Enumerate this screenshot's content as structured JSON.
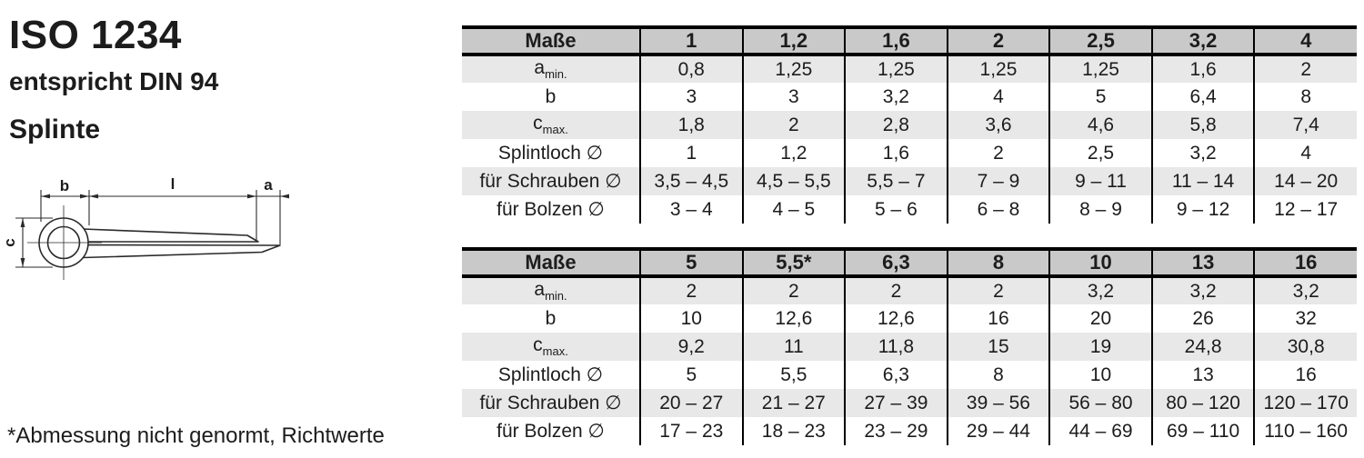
{
  "page": {
    "title": "ISO 1234",
    "subtitle": "entspricht DIN 94",
    "product": "Splinte",
    "footnote": "*Abmessung nicht genormt, Richtwerte"
  },
  "drawing": {
    "labels": {
      "b": "b",
      "l": "l",
      "a": "a",
      "c": "c"
    }
  },
  "colors": {
    "header_bg": "#c9c9c9",
    "row_alt_bg": "#e8e8e8",
    "border": "#000000",
    "text": "#1c1c1c"
  },
  "tables": [
    {
      "header": [
        "Maße",
        "1",
        "1,2",
        "1,6",
        "2",
        "2,5",
        "3,2",
        "4"
      ],
      "rows": [
        {
          "label": "a",
          "sub": "min.",
          "values": [
            "0,8",
            "1,25",
            "1,25",
            "1,25",
            "1,25",
            "1,6",
            "2"
          ]
        },
        {
          "label": "b",
          "sub": "",
          "values": [
            "3",
            "3",
            "3,2",
            "4",
            "5",
            "6,4",
            "8"
          ]
        },
        {
          "label": "c",
          "sub": "max.",
          "values": [
            "1,8",
            "2",
            "2,8",
            "3,6",
            "4,6",
            "5,8",
            "7,4"
          ]
        },
        {
          "label": "Splintloch ∅",
          "sub": "",
          "values": [
            "1",
            "1,2",
            "1,6",
            "2",
            "2,5",
            "3,2",
            "4"
          ]
        },
        {
          "label": "für Schrauben ∅",
          "sub": "",
          "values": [
            "3,5 – 4,5",
            "4,5 – 5,5",
            "5,5 – 7",
            "7 – 9",
            "9 – 11",
            "11 – 14",
            "14 – 20"
          ]
        },
        {
          "label": "für Bolzen ∅",
          "sub": "",
          "values": [
            "3 – 4",
            "4 – 5",
            "5 – 6",
            "6 – 8",
            "8 – 9",
            "9 – 12",
            "12 – 17"
          ]
        }
      ]
    },
    {
      "header": [
        "Maße",
        "5",
        "5,5*",
        "6,3",
        "8",
        "10",
        "13",
        "16"
      ],
      "rows": [
        {
          "label": "a",
          "sub": "min.",
          "values": [
            "2",
            "2",
            "2",
            "2",
            "3,2",
            "3,2",
            "3,2"
          ]
        },
        {
          "label": "b",
          "sub": "",
          "values": [
            "10",
            "12,6",
            "12,6",
            "16",
            "20",
            "26",
            "32"
          ]
        },
        {
          "label": "c",
          "sub": "max.",
          "values": [
            "9,2",
            "11",
            "11,8",
            "15",
            "19",
            "24,8",
            "30,8"
          ]
        },
        {
          "label": "Splintloch ∅",
          "sub": "",
          "values": [
            "5",
            "5,5",
            "6,3",
            "8",
            "10",
            "13",
            "16"
          ]
        },
        {
          "label": "für Schrauben ∅",
          "sub": "",
          "values": [
            "20 – 27",
            "21 – 27",
            "27 – 39",
            "39 – 56",
            "56 – 80",
            "80 – 120",
            "120 – 170"
          ]
        },
        {
          "label": "für Bolzen ∅",
          "sub": "",
          "values": [
            "17 – 23",
            "18 – 23",
            "23 – 29",
            "29 – 44",
            "44 – 69",
            "69 – 110",
            "110 – 160"
          ]
        }
      ]
    }
  ]
}
